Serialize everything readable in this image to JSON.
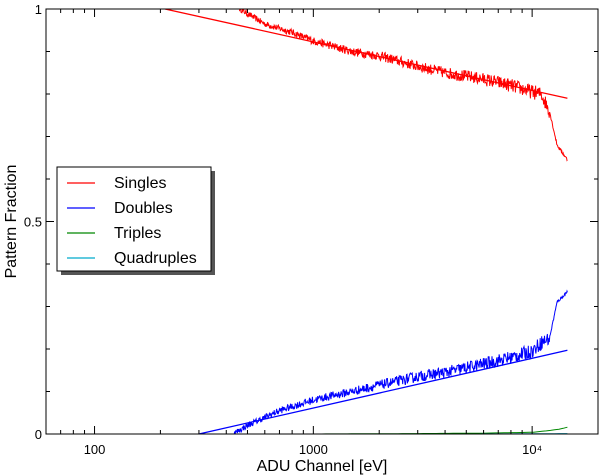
{
  "chart_data": {
    "type": "line",
    "title": "",
    "xlabel": "ADU Channel [eV]",
    "ylabel": "Pattern Fraction",
    "xscale": "log",
    "xlim": [
      60,
      20000
    ],
    "ylim": [
      0,
      1
    ],
    "x_ticks": [
      {
        "value": 100,
        "label": "100"
      },
      {
        "value": 1000,
        "label": "1000"
      },
      {
        "value": 10000,
        "label": "10⁴"
      }
    ],
    "y_ticks": [
      {
        "value": 0,
        "label": "0"
      },
      {
        "value": 0.5,
        "label": "0.5"
      },
      {
        "value": 1,
        "label": "1"
      }
    ],
    "legend_position": "middle-left",
    "series": [
      {
        "name": "Singles",
        "color": "#ff0000",
        "noise": 0.018,
        "x": [
          460,
          600,
          800,
          1000,
          1500,
          2000,
          3000,
          4000,
          6000,
          8000,
          10000,
          11000,
          12000,
          13000,
          14500
        ],
        "values": [
          1.0,
          0.965,
          0.945,
          0.925,
          0.9,
          0.89,
          0.865,
          0.85,
          0.835,
          0.82,
          0.805,
          0.8,
          0.76,
          0.68,
          0.645
        ]
      },
      {
        "name": "Doubles",
        "color": "#0000ff",
        "noise": 0.018,
        "x": [
          430,
          500,
          700,
          1000,
          1500,
          2000,
          3000,
          4000,
          6000,
          8000,
          10000,
          11000,
          12000,
          13000,
          14500
        ],
        "values": [
          0.0,
          0.02,
          0.055,
          0.08,
          0.1,
          0.115,
          0.135,
          0.145,
          0.165,
          0.18,
          0.195,
          0.215,
          0.225,
          0.31,
          0.335
        ]
      },
      {
        "name": "Triples",
        "color": "#008800",
        "noise": 0.0,
        "x": [
          1000,
          3000,
          6000,
          10000,
          12000,
          13500,
          14500
        ],
        "values": [
          0.0,
          0.001,
          0.002,
          0.004,
          0.008,
          0.012,
          0.016
        ]
      },
      {
        "name": "Quadruples",
        "color": "#00aacc",
        "noise": 0.0,
        "x": [
          1000,
          5000,
          10000,
          14500
        ],
        "values": [
          0.0,
          0.0,
          0.0005,
          0.001
        ]
      }
    ],
    "fit_lines": [
      {
        "name": "Singles model",
        "color": "#ff0000",
        "x": [
          210,
          14500
        ],
        "values": [
          1.0,
          0.79
        ]
      },
      {
        "name": "Doubles model",
        "color": "#0000ff",
        "x": [
          300,
          14500
        ],
        "values": [
          0.0,
          0.197
        ]
      }
    ]
  }
}
